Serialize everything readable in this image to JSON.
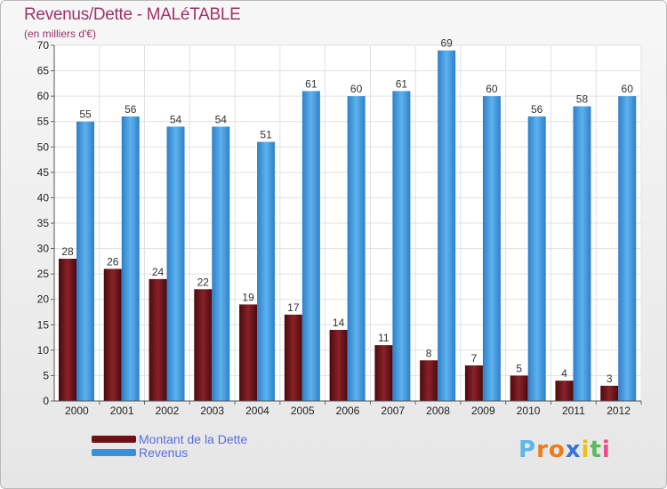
{
  "header": {
    "title": "Revenus/Dette - MALéTABLE",
    "subtitle": "(en milliers d'€)"
  },
  "legend": [
    {
      "label": "Montant de la Dette",
      "color": "#6e1016"
    },
    {
      "label": "Revenus",
      "color": "#3a8fd6"
    }
  ],
  "logo": {
    "letters": [
      "P",
      "r",
      "o",
      "x",
      "i",
      "t",
      "i"
    ],
    "colors": [
      "#5db8e8",
      "#f07a1a",
      "#f07a1a",
      "#3a73d6",
      "#e8c21a",
      "#5bb85b",
      "#e84f8a"
    ]
  },
  "chart_data": {
    "type": "bar",
    "categories": [
      "2000",
      "2001",
      "2002",
      "2003",
      "2004",
      "2005",
      "2006",
      "2007",
      "2008",
      "2009",
      "2010",
      "2011",
      "2012"
    ],
    "series": [
      {
        "name": "Montant de la Dette",
        "values": [
          28,
          26,
          24,
          22,
          19,
          17,
          14,
          11,
          8,
          7,
          5,
          4,
          3
        ],
        "color": "#6e1016"
      },
      {
        "name": "Revenus",
        "values": [
          55,
          56,
          54,
          54,
          51,
          61,
          60,
          61,
          69,
          60,
          56,
          58,
          60
        ],
        "color": "#3a8fd6"
      }
    ],
    "ylim": [
      0,
      70
    ],
    "yticks": [
      0,
      5,
      10,
      15,
      20,
      25,
      30,
      35,
      40,
      45,
      50,
      55,
      60,
      65,
      70
    ],
    "grid": true
  }
}
